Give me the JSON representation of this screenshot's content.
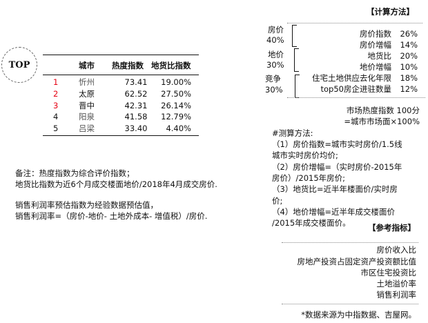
{
  "badge": "TOP",
  "table": {
    "headers": [
      "城市",
      "热度指数",
      "地货比指数"
    ],
    "rows": [
      {
        "rank": "1",
        "city": "忻州",
        "heat": "73.41",
        "ratio": "19.00%"
      },
      {
        "rank": "2",
        "city": "太原",
        "heat": "62.52",
        "ratio": "27.50%"
      },
      {
        "rank": "3",
        "city": "晋中",
        "heat": "42.31",
        "ratio": "26.14%"
      },
      {
        "rank": "4",
        "city": "阳泉",
        "heat": "41.58",
        "ratio": "12.79%"
      },
      {
        "rank": "5",
        "city": "吕梁",
        "heat": "33.40",
        "ratio": "4.40%"
      }
    ]
  },
  "notes": [
    "备注：热度指数为综合评价指数；",
    "地货比指数为近6个月成交楼面地价/2018年4月成交房价.",
    "销售利润率预估指数为经验数据预估值，",
    "销售利润率=（房价-地价- 土地外成本- 增值税）/房价."
  ],
  "method": {
    "title": "【计算方法】",
    "groups": [
      {
        "name": "房价",
        "weight": "40%",
        "items": [
          {
            "label": "房价指数",
            "pct": "26%"
          },
          {
            "label": "房价增幅",
            "pct": "14%"
          }
        ]
      },
      {
        "name": "地价",
        "weight": "30%",
        "items": [
          {
            "label": "地货比",
            "pct": "20%"
          },
          {
            "label": "地价增幅",
            "pct": "10%"
          }
        ]
      },
      {
        "name": "竞争",
        "weight": "30%",
        "items": [
          {
            "label": "住宅土地供应去化年限",
            "pct": "18%"
          },
          {
            "label": "top50房企进驻数量",
            "pct": "12%"
          }
        ]
      }
    ],
    "total_line1": "市场热度指数 100分",
    "total_line2": "=城市市场面×100%"
  },
  "calc": {
    "lines": [
      "#测算方法:",
      "（1）房价指数=城市实时房价/1.5线",
      "城市实时房价均价;",
      "（2）房价增幅=（实时房价-2015年",
      "房价）/2015年房价;",
      "（3）地货比=近半年楼面价/实时房",
      "价;",
      "（4）地价增幅=近半年成交楼面价",
      "/2015年成交楼面价。"
    ]
  },
  "reference": {
    "title": "【参考指标】",
    "items": [
      "房价收入比",
      "房地产投资占固定资产投资额比值",
      "市区住宅投资比",
      "土地溢价率",
      "销售利润率"
    ]
  },
  "source": "*数据来源为中指数据、吉屋网。"
}
